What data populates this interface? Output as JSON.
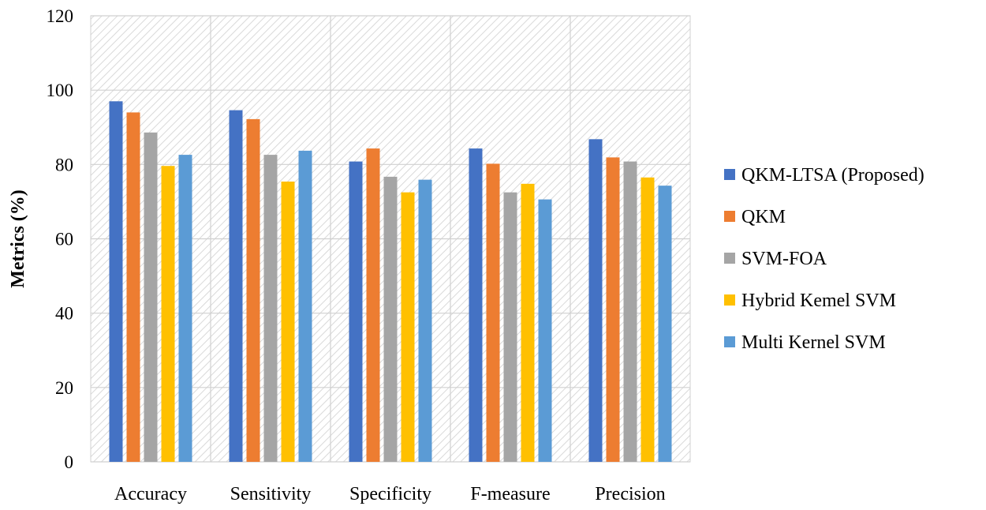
{
  "chart_data": {
    "type": "bar",
    "title": "",
    "xlabel": "",
    "ylabel": "Metrics (%)",
    "ylim": [
      0,
      120
    ],
    "yticks": [
      0,
      20,
      40,
      60,
      80,
      100,
      120
    ],
    "grid": true,
    "legend_position": "right",
    "categories": [
      "Accuracy",
      "Sensitivity",
      "Specificity",
      "F-measure",
      "Precision"
    ],
    "series": [
      {
        "name": "QKM-LTSA (Proposed)",
        "color": "#4472C4",
        "values": [
          97,
          94.6,
          80.8,
          84.3,
          86.8
        ]
      },
      {
        "name": "QKM",
        "color": "#ED7D31",
        "values": [
          94,
          92.2,
          84.3,
          80.2,
          81.9
        ]
      },
      {
        "name": "SVM-FOA",
        "color": "#A5A5A5",
        "values": [
          88.6,
          82.6,
          76.7,
          72.5,
          80.8
        ]
      },
      {
        "name": "Hybrid Kemel SVM",
        "color": "#FFC000",
        "values": [
          79.6,
          75.4,
          72.5,
          74.8,
          76.5
        ]
      },
      {
        "name": "Multi Kernel SVM",
        "color": "#5B9BD5",
        "values": [
          82.6,
          83.7,
          75.9,
          70.6,
          74.3
        ]
      }
    ]
  }
}
